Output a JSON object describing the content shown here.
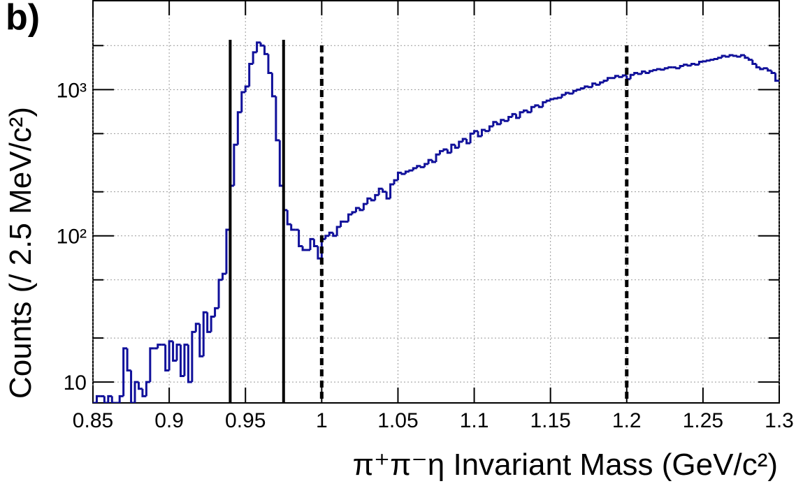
{
  "chart_data": {
    "type": "histogram",
    "title": "b)",
    "x_label": "π⁺π⁻η Invariant Mass (GeV/c²)",
    "y_label": "Counts (/ 2.5 MeV/c²)",
    "color": "#10109a",
    "log_y": true,
    "grid": true,
    "xlim": [
      0.85,
      1.3
    ],
    "ylim": [
      7.2,
      4100
    ],
    "xticks": [
      0.85,
      0.9,
      0.95,
      1,
      1.05,
      1.1,
      1.15,
      1.2,
      1.25,
      1.3
    ],
    "yticks": [
      10,
      {
        "value": 100,
        "label": "10²"
      },
      {
        "value": 1000,
        "label": "10³"
      }
    ],
    "minor_yticks": [
      20,
      50,
      200,
      500,
      2000
    ],
    "bins": [
      0.85,
      0.8525,
      0.855,
      0.8575,
      0.86,
      0.8625,
      0.865,
      0.8675,
      0.87,
      0.8725,
      0.875,
      0.8775,
      0.88,
      0.8825,
      0.885,
      0.8875,
      0.89,
      0.8925,
      0.895,
      0.8975,
      0.9,
      0.9025,
      0.905,
      0.9075,
      0.91,
      0.9125,
      0.915,
      0.9175,
      0.92,
      0.9225,
      0.925,
      0.9275,
      0.93,
      0.9325,
      0.935,
      0.9375,
      0.94,
      0.9425,
      0.945,
      0.9475,
      0.95,
      0.9525,
      0.955,
      0.9575,
      0.96,
      0.9625,
      0.965,
      0.9675,
      0.97,
      0.9725,
      0.975,
      0.9775,
      0.98,
      0.9825,
      0.985,
      0.9875,
      0.99,
      0.9925,
      0.995,
      0.9975,
      1.0,
      1.0025,
      1.005,
      1.0075,
      1.01,
      1.0125,
      1.015,
      1.0175,
      1.02,
      1.0225,
      1.025,
      1.0275,
      1.03,
      1.0325,
      1.035,
      1.0375,
      1.04,
      1.0425,
      1.045,
      1.0475,
      1.05,
      1.0525,
      1.055,
      1.0575,
      1.06,
      1.0625,
      1.065,
      1.0675,
      1.07,
      1.0725,
      1.075,
      1.0775,
      1.08,
      1.0825,
      1.085,
      1.0875,
      1.09,
      1.0925,
      1.095,
      1.0975,
      1.1,
      1.1025,
      1.105,
      1.1075,
      1.11,
      1.1125,
      1.115,
      1.1175,
      1.12,
      1.1225,
      1.125,
      1.1275,
      1.13,
      1.1325,
      1.135,
      1.1375,
      1.14,
      1.1425,
      1.145,
      1.1475,
      1.15,
      1.1525,
      1.155,
      1.1575,
      1.16,
      1.1625,
      1.165,
      1.1675,
      1.17,
      1.1725,
      1.175,
      1.1775,
      1.18,
      1.1825,
      1.185,
      1.1875,
      1.19,
      1.1925,
      1.195,
      1.1975,
      1.2,
      1.2025,
      1.205,
      1.2075,
      1.21,
      1.2125,
      1.215,
      1.2175,
      1.22,
      1.2225,
      1.225,
      1.2275,
      1.23,
      1.2325,
      1.235,
      1.2375,
      1.24,
      1.2425,
      1.245,
      1.2475,
      1.25,
      1.2525,
      1.255,
      1.2575,
      1.26,
      1.2625,
      1.265,
      1.2675,
      1.27,
      1.2725,
      1.275,
      1.2775,
      1.28,
      1.2825,
      1.285,
      1.2875,
      1.29,
      1.2925,
      1.295,
      1.2975,
      1.3
    ],
    "values": [
      7,
      8,
      8,
      6,
      8,
      7,
      6,
      8,
      17,
      12,
      6,
      10,
      9,
      8,
      10,
      17,
      17,
      18,
      18,
      12,
      19,
      14,
      18,
      11,
      18,
      10,
      22,
      25,
      15,
      30,
      22,
      28,
      32,
      50,
      55,
      110,
      220,
      420,
      700,
      960,
      1050,
      1500,
      1800,
      2100,
      2000,
      1750,
      1300,
      900,
      450,
      220,
      150,
      120,
      110,
      110,
      85,
      80,
      80,
      95,
      85,
      70,
      95,
      100,
      105,
      100,
      115,
      125,
      125,
      140,
      145,
      155,
      150,
      165,
      180,
      175,
      190,
      210,
      200,
      180,
      225,
      240,
      270,
      265,
      275,
      280,
      290,
      300,
      295,
      310,
      330,
      320,
      360,
      380,
      390,
      370,
      420,
      400,
      440,
      460,
      430,
      500,
      520,
      480,
      530,
      520,
      560,
      600,
      580,
      620,
      610,
      650,
      680,
      640,
      700,
      720,
      700,
      760,
      780,
      760,
      820,
      840,
      860,
      870,
      880,
      920,
      950,
      940,
      980,
      1000,
      1020,
      1050,
      1040,
      1100,
      1080,
      1120,
      1150,
      1200,
      1200,
      1240,
      1220,
      1250,
      1180,
      1260,
      1300,
      1280,
      1330,
      1300,
      1340,
      1360,
      1380,
      1370,
      1400,
      1420,
      1420,
      1400,
      1450,
      1480,
      1460,
      1500,
      1480,
      1550,
      1560,
      1580,
      1600,
      1620,
      1650,
      1700,
      1680,
      1720,
      1700,
      1680,
      1720,
      1650,
      1600,
      1500,
      1420,
      1380,
      1400,
      1350,
      1300,
      1150
    ],
    "cut_lines": [
      {
        "x": 0.94,
        "style": "solid"
      },
      {
        "x": 0.975,
        "style": "solid"
      },
      {
        "x": 1.0,
        "style": "dashed"
      },
      {
        "x": 1.2,
        "style": "dashed"
      }
    ]
  }
}
